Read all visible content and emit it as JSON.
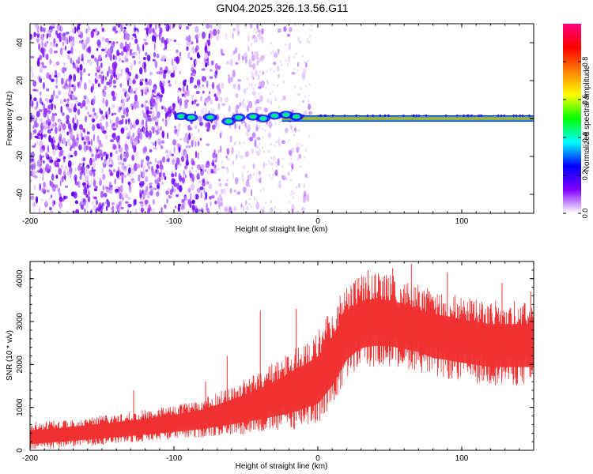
{
  "title": "GN04.2025.326.13.56.G11",
  "chart_data": [
    {
      "type": "heatmap",
      "title": "GN04.2025.326.13.56.G11",
      "xlabel": "Height of straight line (km)",
      "ylabel": "Frequency (Hz)",
      "xlim": [
        -200,
        150
      ],
      "ylim": [
        -50,
        50
      ],
      "xticks": [
        -200,
        -100,
        0,
        100
      ],
      "yticks": [
        -40,
        -20,
        0,
        20,
        40
      ],
      "description": {
        "noise_region_x": [
          -200,
          -30
        ],
        "signal_line_frequency_hz": 0,
        "signal_line_start_km": -95
      },
      "colorbar": {
        "label": "Normalized spectral amplitude",
        "range": [
          0,
          1
        ],
        "ticks": [
          0.0,
          0.2,
          0.4,
          0.6,
          0.8
        ],
        "tick_labels": [
          "0.0",
          "0.2",
          "0.4",
          "0.6",
          "0.8"
        ],
        "colors": [
          "#ffffff",
          "#8000ff",
          "#0000ff",
          "#00ffff",
          "#00ff00",
          "#ffff00",
          "#ff8000",
          "#ff0000",
          "#ff0080"
        ]
      }
    },
    {
      "type": "line",
      "xlabel": "Height of straight line (km)",
      "ylabel": "SNR (10 * v/v)",
      "xlim": [
        -200,
        150
      ],
      "ylim": [
        0,
        4400
      ],
      "xticks": [
        -200,
        -100,
        0,
        100
      ],
      "yticks": [
        0,
        1000,
        2000,
        3000,
        4000
      ],
      "color": "#f03232",
      "series": [
        {
          "name": "SNR",
          "x": [
            -200,
            -180,
            -160,
            -140,
            -120,
            -100,
            -80,
            -60,
            -40,
            -20,
            0,
            10,
            20,
            30,
            40,
            50,
            60,
            70,
            80,
            90,
            100,
            110,
            120,
            130,
            140,
            150
          ],
          "low": [
            0,
            50,
            100,
            150,
            200,
            250,
            300,
            350,
            400,
            450,
            600,
            1000,
            1600,
            1900,
            1950,
            1950,
            1900,
            1850,
            1700,
            1650,
            1600,
            1550,
            1500,
            1500,
            1500,
            1500
          ],
          "high": [
            650,
            700,
            780,
            850,
            950,
            1050,
            1200,
            1500,
            1850,
            2300,
            2800,
            3300,
            3900,
            4100,
            4150,
            4100,
            4000,
            3850,
            3750,
            3700,
            3600,
            3550,
            3500,
            3500,
            3500,
            3500
          ],
          "peaks": [
            [
              -128,
              1400
            ],
            [
              -78,
              1600
            ],
            [
              -63,
              2200
            ],
            [
              -40,
              3250
            ],
            [
              -15,
              3300
            ],
            [
              25,
              3900
            ],
            [
              35,
              4200
            ],
            [
              52,
              4250
            ],
            [
              65,
              4350
            ],
            [
              90,
              4150
            ],
            [
              128,
              3900
            ],
            [
              148,
              3700
            ]
          ]
        }
      ]
    }
  ]
}
